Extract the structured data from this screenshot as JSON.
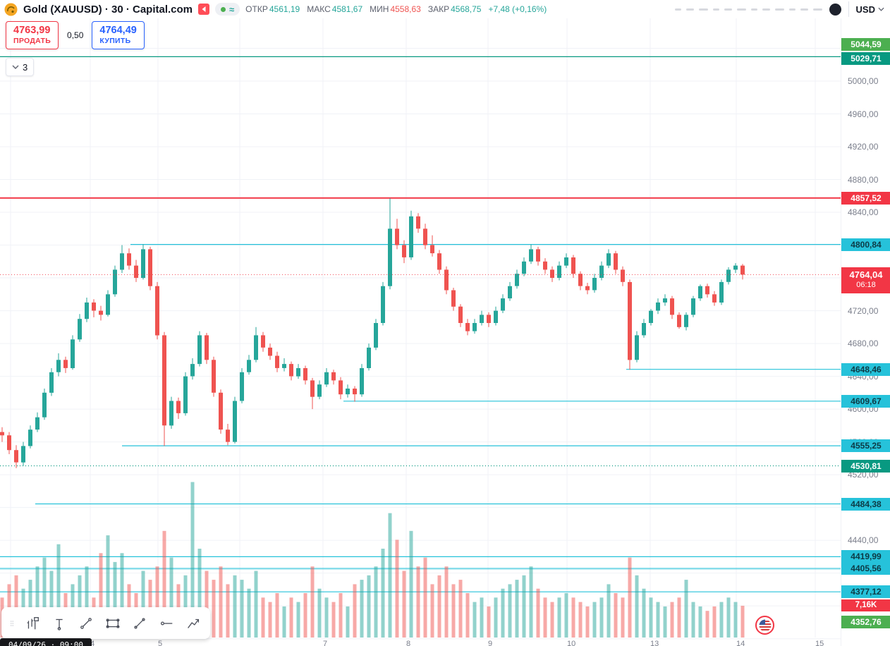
{
  "header": {
    "symbol_title": "Gold (XAUUSD) · 30 · Capital.com",
    "ohlc": {
      "open_label": "ОТКР",
      "open": "4561,19",
      "high_label": "МАКС",
      "high": "4581,67",
      "low_label": "МИН",
      "low": "4558,63",
      "close_label": "ЗАКР",
      "close": "4568,75",
      "change": "+7,48 (+0,16%)"
    },
    "currency": "USD"
  },
  "trade_panel": {
    "sell_price": "4763,99",
    "sell_label": "ПРОДАТЬ",
    "spread": "0,50",
    "buy_price": "4764,49",
    "buy_label": "КУПИТЬ",
    "collapsed_count": "3"
  },
  "footer": {
    "datetime": "04/09/26 · 09:00"
  },
  "colors": {
    "up": "#26a69a",
    "down": "#ef5350",
    "cyan": "#26c2da",
    "teal": "#089981",
    "green": "#4caf50",
    "red": "#f23645",
    "blue": "#2962ff",
    "grid": "#f0f2f7",
    "axis_text": "#7b7f8c"
  },
  "chart_data": {
    "type": "candlestick",
    "symbol": "XAUUSD",
    "interval_minutes": 30,
    "ylim": [
      4311.1,
      5098.9
    ],
    "y_grid_step": 40,
    "current_price": {
      "price": 4764.04,
      "label": "4764,04",
      "countdown": "06:18"
    },
    "volume_last_label": "7,16K",
    "y_axis_ticks": [
      {
        "price": 5000,
        "label": "5000,00"
      },
      {
        "price": 4960,
        "label": "4960,00"
      },
      {
        "price": 4920,
        "label": "4920,00"
      },
      {
        "price": 4880,
        "label": "4880,00"
      },
      {
        "price": 4840,
        "label": "4840,00"
      },
      {
        "price": 4720,
        "label": "4720,00"
      },
      {
        "price": 4680,
        "label": "4680,00"
      },
      {
        "price": 4640,
        "label": "4640,00"
      },
      {
        "price": 4600,
        "label": "4600,00"
      },
      {
        "price": 4560,
        "label": "4560,00"
      },
      {
        "price": 4520,
        "label": "4520,00"
      },
      {
        "price": 4440,
        "label": "4440,00"
      }
    ],
    "levels": [
      {
        "price": 5044.59,
        "label": "5044,59",
        "color": "green",
        "line": "none"
      },
      {
        "price": 5029.71,
        "label": "5029,71",
        "color": "teal",
        "line": "solid",
        "x1": 0,
        "dy": 3
      },
      {
        "price": 4857.52,
        "label": "4857,52",
        "color": "red",
        "line": "solid",
        "x1": 0
      },
      {
        "price": 4800.84,
        "label": "4800,84",
        "color": "cyan",
        "line": "solid",
        "x1": 185
      },
      {
        "price": 4648.46,
        "label": "4648,46",
        "color": "cyan",
        "line": "solid",
        "x1": 888
      },
      {
        "price": 4609.67,
        "label": "4609,67",
        "color": "cyan",
        "line": "solid",
        "x1": 487
      },
      {
        "price": 4555.25,
        "label": "4555,25",
        "color": "cyan",
        "line": "solid",
        "x1": 173
      },
      {
        "price": 4530.81,
        "label": "4530,81",
        "color": "teal",
        "line": "dotted",
        "x1": 0
      },
      {
        "price": 4484.38,
        "label": "4484,38",
        "color": "cyan",
        "line": "solid",
        "x1": 50
      },
      {
        "price": 4419.99,
        "label": "4419,99",
        "color": "cyan",
        "line": "solid",
        "x1": 0
      },
      {
        "price": 4405.56,
        "label": "4405,56",
        "color": "cyan",
        "line": "thick",
        "x1": 0
      },
      {
        "price": 4377.12,
        "label": "4377,12",
        "color": "cyan",
        "line": "solid",
        "x1": 0
      },
      {
        "price": 4352.76,
        "label": "4352,76",
        "color": "green",
        "line": "none",
        "dy": 14
      }
    ],
    "x_axis": {
      "labels": [
        {
          "x": 128,
          "t": "4"
        },
        {
          "x": 224,
          "t": "5"
        },
        {
          "x": 458,
          "t": "7"
        },
        {
          "x": 576,
          "t": "8"
        },
        {
          "x": 692,
          "t": "9"
        },
        {
          "x": 804,
          "t": "10"
        },
        {
          "x": 922,
          "t": "13"
        },
        {
          "x": 1044,
          "t": "14"
        },
        {
          "x": 1156,
          "t": "15"
        }
      ],
      "vgrid_x": [
        15,
        128,
        224,
        340,
        458,
        576,
        692,
        804,
        922,
        1044,
        1156
      ]
    },
    "candles": [
      [
        4572,
        4578,
        4560,
        4568,
        9
      ],
      [
        4568,
        4572,
        4545,
        4550,
        12
      ],
      [
        4550,
        4556,
        4528,
        4535,
        14
      ],
      [
        4535,
        4560,
        4531,
        4555,
        11
      ],
      [
        4555,
        4580,
        4552,
        4575,
        13
      ],
      [
        4575,
        4596,
        4572,
        4590,
        16
      ],
      [
        4590,
        4625,
        4587,
        4620,
        18
      ],
      [
        4620,
        4650,
        4616,
        4645,
        15
      ],
      [
        4645,
        4668,
        4640,
        4660,
        21
      ],
      [
        4660,
        4664,
        4644,
        4650,
        10
      ],
      [
        4650,
        4690,
        4648,
        4685,
        12
      ],
      [
        4685,
        4716,
        4682,
        4710,
        14
      ],
      [
        4710,
        4736,
        4706,
        4730,
        16
      ],
      [
        4730,
        4734,
        4712,
        4720,
        9
      ],
      [
        4720,
        4726,
        4708,
        4715,
        19
      ],
      [
        4715,
        4745,
        4713,
        4740,
        23
      ],
      [
        4740,
        4775,
        4737,
        4770,
        17
      ],
      [
        4770,
        4800,
        4766,
        4790,
        19
      ],
      [
        4790,
        4796,
        4770,
        4775,
        12
      ],
      [
        4775,
        4782,
        4755,
        4760,
        10
      ],
      [
        4760,
        4801,
        4758,
        4795,
        15
      ],
      [
        4795,
        4798,
        4745,
        4750,
        13
      ],
      [
        4750,
        4755,
        4685,
        4690,
        16
      ],
      [
        4690,
        4694,
        4555,
        4580,
        24
      ],
      [
        4580,
        4615,
        4576,
        4610,
        18
      ],
      [
        4610,
        4614,
        4588,
        4595,
        12
      ],
      [
        4595,
        4645,
        4592,
        4640,
        14
      ],
      [
        4640,
        4662,
        4636,
        4655,
        35
      ],
      [
        4655,
        4695,
        4652,
        4690,
        20
      ],
      [
        4690,
        4693,
        4655,
        4660,
        15
      ],
      [
        4660,
        4664,
        4615,
        4620,
        13
      ],
      [
        4620,
        4624,
        4570,
        4575,
        16
      ],
      [
        4575,
        4582,
        4556,
        4560,
        12
      ],
      [
        4560,
        4615,
        4558,
        4610,
        14
      ],
      [
        4610,
        4650,
        4607,
        4645,
        13
      ],
      [
        4645,
        4666,
        4642,
        4660,
        11
      ],
      [
        4660,
        4700,
        4657,
        4690,
        15
      ],
      [
        4690,
        4694,
        4670,
        4675,
        9
      ],
      [
        4675,
        4680,
        4660,
        4665,
        8
      ],
      [
        4665,
        4670,
        4645,
        4650,
        10
      ],
      [
        4650,
        4662,
        4646,
        4655,
        7
      ],
      [
        4655,
        4658,
        4635,
        4640,
        9
      ],
      [
        4640,
        4655,
        4637,
        4650,
        8
      ],
      [
        4650,
        4653,
        4630,
        4635,
        10
      ],
      [
        4635,
        4638,
        4600,
        4615,
        16
      ],
      [
        4615,
        4635,
        4612,
        4630,
        11
      ],
      [
        4630,
        4650,
        4627,
        4645,
        9
      ],
      [
        4645,
        4648,
        4630,
        4635,
        8
      ],
      [
        4635,
        4639,
        4612,
        4618,
        10
      ],
      [
        4618,
        4630,
        4614,
        4625,
        7
      ],
      [
        4625,
        4628,
        4609,
        4618,
        12
      ],
      [
        4618,
        4655,
        4615,
        4650,
        13
      ],
      [
        4650,
        4680,
        4647,
        4675,
        14
      ],
      [
        4675,
        4710,
        4672,
        4705,
        16
      ],
      [
        4705,
        4755,
        4702,
        4750,
        20
      ],
      [
        4750,
        4857,
        4746,
        4820,
        28
      ],
      [
        4820,
        4832,
        4795,
        4800,
        22
      ],
      [
        4800,
        4806,
        4778,
        4785,
        15
      ],
      [
        4785,
        4842,
        4782,
        4835,
        24
      ],
      [
        4835,
        4839,
        4815,
        4820,
        16
      ],
      [
        4820,
        4826,
        4795,
        4800,
        18
      ],
      [
        4800,
        4812,
        4786,
        4790,
        12
      ],
      [
        4790,
        4794,
        4765,
        4770,
        14
      ],
      [
        4770,
        4774,
        4740,
        4745,
        16
      ],
      [
        4745,
        4748,
        4720,
        4725,
        12
      ],
      [
        4725,
        4728,
        4700,
        4705,
        13
      ],
      [
        4705,
        4710,
        4690,
        4695,
        10
      ],
      [
        4695,
        4710,
        4692,
        4705,
        8
      ],
      [
        4705,
        4720,
        4702,
        4715,
        9
      ],
      [
        4715,
        4718,
        4700,
        4705,
        7
      ],
      [
        4705,
        4725,
        4702,
        4720,
        9
      ],
      [
        4720,
        4740,
        4717,
        4735,
        11
      ],
      [
        4735,
        4755,
        4732,
        4750,
        12
      ],
      [
        4750,
        4770,
        4747,
        4765,
        13
      ],
      [
        4765,
        4785,
        4762,
        4780,
        14
      ],
      [
        4780,
        4801,
        4777,
        4795,
        16
      ],
      [
        4795,
        4798,
        4775,
        4780,
        11
      ],
      [
        4780,
        4784,
        4765,
        4770,
        9
      ],
      [
        4770,
        4774,
        4755,
        4760,
        8
      ],
      [
        4760,
        4780,
        4757,
        4775,
        9
      ],
      [
        4775,
        4790,
        4772,
        4785,
        10
      ],
      [
        4785,
        4788,
        4760,
        4765,
        9
      ],
      [
        4765,
        4768,
        4745,
        4750,
        8
      ],
      [
        4750,
        4754,
        4740,
        4745,
        7
      ],
      [
        4745,
        4765,
        4742,
        4760,
        8
      ],
      [
        4760,
        4780,
        4757,
        4775,
        9
      ],
      [
        4775,
        4795,
        4772,
        4790,
        12
      ],
      [
        4790,
        4793,
        4765,
        4770,
        10
      ],
      [
        4770,
        4774,
        4750,
        4755,
        9
      ],
      [
        4755,
        4758,
        4648,
        4660,
        18
      ],
      [
        4660,
        4695,
        4657,
        4690,
        14
      ],
      [
        4690,
        4710,
        4687,
        4705,
        11
      ],
      [
        4705,
        4722,
        4702,
        4720,
        9
      ],
      [
        4720,
        4735,
        4716,
        4730,
        8
      ],
      [
        4730,
        4740,
        4726,
        4735,
        7
      ],
      [
        4735,
        4738,
        4710,
        4715,
        8
      ],
      [
        4715,
        4718,
        4698,
        4700,
        9
      ],
      [
        4700,
        4718,
        4696,
        4715,
        13
      ],
      [
        4715,
        4738,
        4712,
        4735,
        8
      ],
      [
        4735,
        4752,
        4732,
        4750,
        7
      ],
      [
        4750,
        4753,
        4736,
        4740,
        6
      ],
      [
        4740,
        4744,
        4726,
        4730,
        7
      ],
      [
        4730,
        4758,
        4727,
        4755,
        8
      ],
      [
        4755,
        4773,
        4752,
        4770,
        9
      ],
      [
        4770,
        4778,
        4766,
        4775,
        8
      ],
      [
        4775,
        4777,
        4758,
        4764,
        7.16
      ]
    ]
  }
}
